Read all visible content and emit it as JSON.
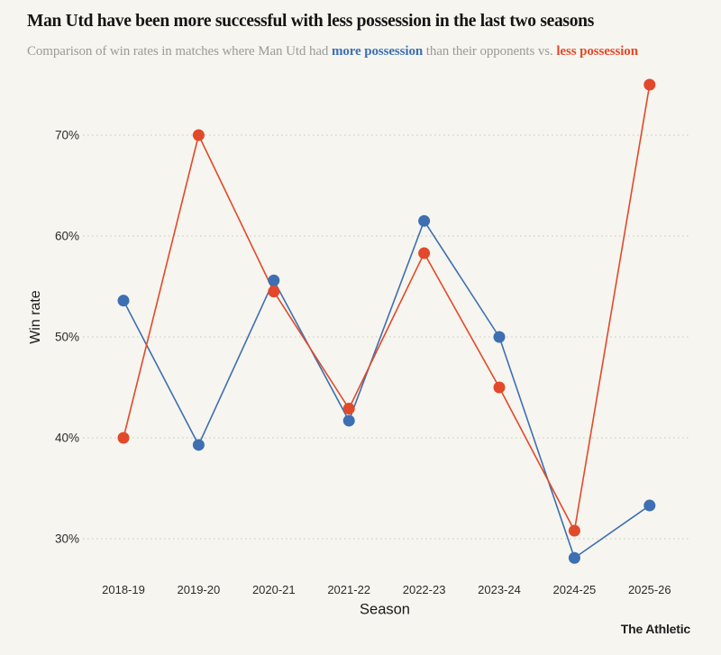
{
  "colors": {
    "background": "#f6f5ef",
    "more_possession_blue": "#3d6fb2",
    "less_possession_orange": "#e2492a",
    "title_text": "#141414",
    "subtitle_text": "#9b9b97",
    "gridline": "#d3d2c9",
    "tick_text": "#2b2b2b"
  },
  "header": {
    "title": "Man Utd have been more successful with less possession in the last two seasons",
    "subtitle_part1": "Comparison of win rates in matches where Man Utd had ",
    "subtitle_more": "more possession",
    "subtitle_part2": " than their opponents vs. ",
    "subtitle_less": "less possession"
  },
  "footer": {
    "brand": "The Athletic"
  },
  "chart_data": {
    "type": "line",
    "title": "Man Utd have been more successful with less possession in the last two seasons",
    "subtitle": "Comparison of win rates in matches where Man Utd had more possession than their opponents vs. less possession",
    "categories": [
      "2018-19",
      "2019-20",
      "2020-21",
      "2021-22",
      "2022-23",
      "2023-24",
      "2024-25",
      "2025-26"
    ],
    "series": [
      {
        "name": "more possession",
        "color": "#3d6fb2",
        "values": [
          53.6,
          39.3,
          55.6,
          41.7,
          61.5,
          50.0,
          28.1,
          33.3
        ]
      },
      {
        "name": "less possession",
        "color": "#e2492a",
        "values": [
          40.0,
          70.0,
          54.5,
          42.9,
          58.3,
          45.0,
          30.8,
          75.0
        ]
      }
    ],
    "xlabel": "Season",
    "ylabel": "Win rate",
    "yticks": [
      30,
      40,
      50,
      60,
      70
    ],
    "ytick_suffix": "%",
    "ylim": [
      26.5,
      76.5
    ],
    "grid": "horizontal-dotted",
    "legend_position": "inline-subtitle",
    "marker": "filled-circle"
  }
}
